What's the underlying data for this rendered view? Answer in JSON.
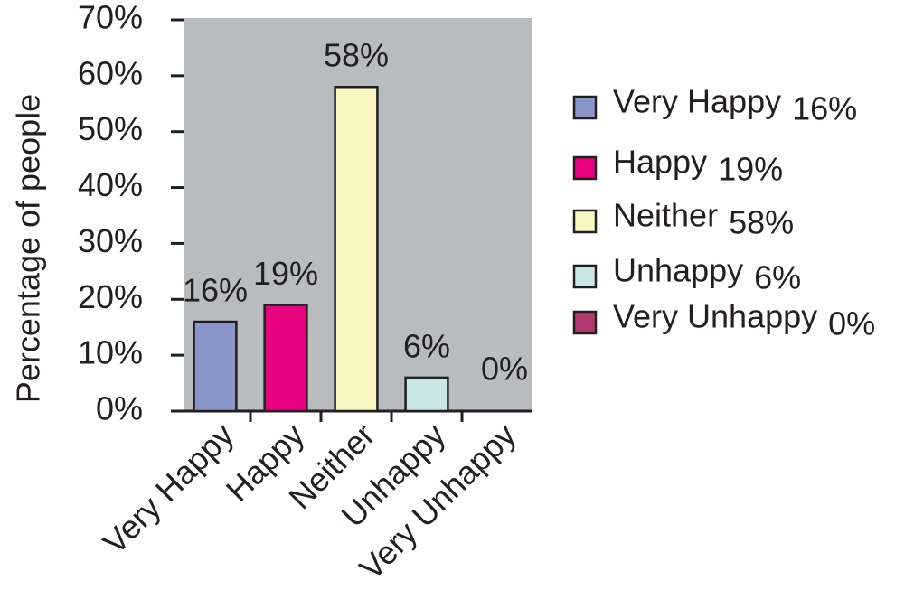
{
  "chart_data": {
    "type": "bar",
    "y_label": "Percentage of people",
    "categories": [
      "Very Happy",
      "Happy",
      "Neither",
      "Unhappy",
      "Very Unhappy"
    ],
    "values": [
      16,
      19,
      58,
      6,
      0
    ],
    "value_labels": [
      "16%",
      "19%",
      "58%",
      "6%",
      "0%"
    ],
    "colors": [
      "#8a95c8",
      "#e8007e",
      "#f8f6c0",
      "#c8e6e6",
      "#b03a6e"
    ],
    "ylim": [
      0,
      70
    ],
    "yticks": [
      {
        "value": 0,
        "label": "0%"
      },
      {
        "value": 10,
        "label": "10%"
      },
      {
        "value": 20,
        "label": "20%"
      },
      {
        "value": 30,
        "label": "30%"
      },
      {
        "value": 40,
        "label": "40%"
      },
      {
        "value": 50,
        "label": "50%"
      },
      {
        "value": 60,
        "label": "60%"
      },
      {
        "value": 70,
        "label": "70%"
      }
    ],
    "legend": "right"
  }
}
